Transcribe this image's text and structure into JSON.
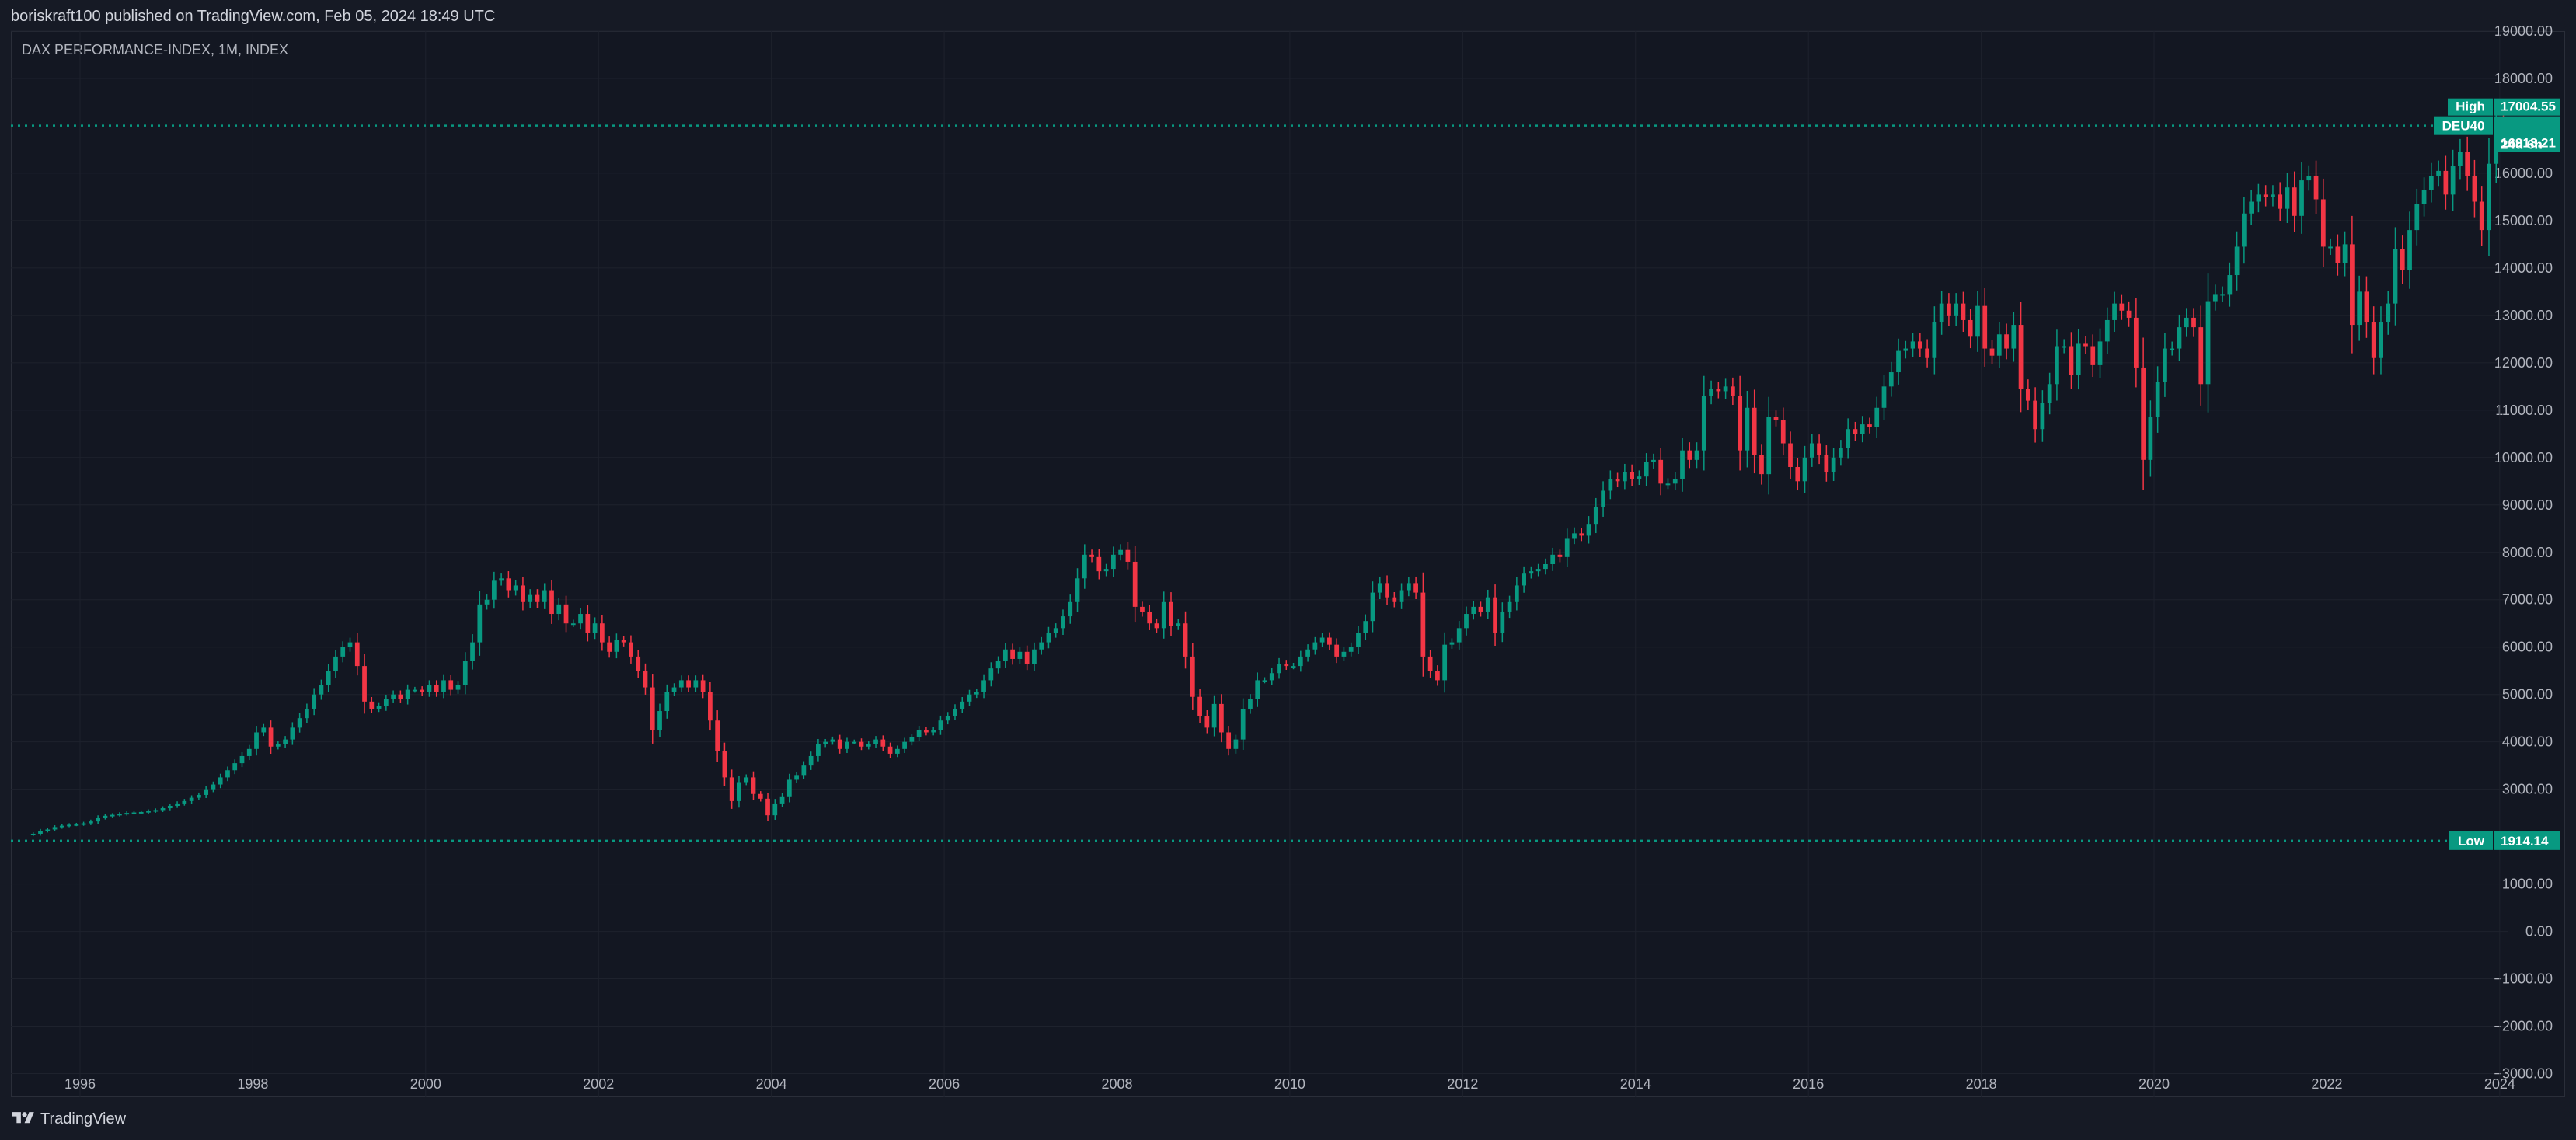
{
  "header": {
    "publish_text": "boriskraft100 published on TradingView.com, Feb 05, 2024 18:49 UTC"
  },
  "footer": {
    "brand": "TradingView"
  },
  "chart_data": {
    "type": "candlestick",
    "title": "DAX PERFORMANCE-INDEX, 1M, INDEX",
    "ylim": [
      -3500,
      19000
    ],
    "xlim": [
      1995.2,
      2024.1
    ],
    "y_ticks": [
      19000,
      18000,
      16000,
      15000,
      14000,
      13000,
      12000,
      11000,
      10000,
      9000,
      8000,
      7000,
      6000,
      5000,
      4000,
      3000,
      1000,
      0,
      -1000,
      -2000,
      -3000
    ],
    "y_tick_labels": [
      "19000.00",
      "18000.00",
      "16000.00",
      "15000.00",
      "14000.00",
      "13000.00",
      "12000.00",
      "11000.00",
      "10000.00",
      "9000.00",
      "8000.00",
      "7000.00",
      "6000.00",
      "5000.00",
      "4000.00",
      "3000.00",
      "1000.00",
      "0.00",
      "−1000.00",
      "−2000.00",
      "−3000.00"
    ],
    "x_ticks": [
      1996,
      1998,
      2000,
      2002,
      2004,
      2006,
      2008,
      2010,
      2012,
      2014,
      2016,
      2018,
      2020,
      2022,
      2024
    ],
    "x_tick_labels": [
      "1996",
      "1998",
      "2000",
      "2002",
      "2004",
      "2006",
      "2008",
      "2010",
      "2012",
      "2014",
      "2016",
      "2018",
      "2020",
      "2022",
      "2024"
    ],
    "high_line": {
      "label": "High",
      "value": 17004.55,
      "value_text": "17004.55"
    },
    "low_line": {
      "label": "Low",
      "value": 1914.14,
      "value_text": "1914.14"
    },
    "last_price": {
      "symbol": "DEU40",
      "value": 16918.21,
      "value_text": "16918.21",
      "countdown": "24d 6h"
    },
    "up_color": "#089981",
    "down_color": "#f23645",
    "line_color": "#089981",
    "close_series": {
      "start": "1995-06",
      "step": "1M",
      "values": [
        2060,
        2120,
        2150,
        2200,
        2230,
        2250,
        2260,
        2280,
        2320,
        2400,
        2440,
        2460,
        2480,
        2500,
        2510,
        2520,
        2540,
        2560,
        2600,
        2650,
        2700,
        2750,
        2820,
        2880,
        3000,
        3100,
        3250,
        3400,
        3550,
        3700,
        3850,
        4200,
        4300,
        3900,
        3950,
        4050,
        4300,
        4500,
        4700,
        5000,
        5200,
        5500,
        5800,
        6000,
        6100,
        5600,
        4850,
        4700,
        4750,
        4900,
        5000,
        4900,
        5100,
        5100,
        5050,
        5200,
        5050,
        5300,
        5100,
        5200,
        5700,
        6100,
        6900,
        7000,
        7400,
        7450,
        7200,
        7300,
        6950,
        7100,
        6950,
        7200,
        6700,
        6900,
        6500,
        6500,
        6700,
        6300,
        6500,
        6100,
        5900,
        6150,
        6100,
        5800,
        5500,
        5150,
        4250,
        4650,
        5050,
        5150,
        5300,
        5150,
        5300,
        5050,
        4450,
        3800,
        3250,
        2750,
        3150,
        3250,
        2900,
        2800,
        2450,
        2700,
        2850,
        3200,
        3300,
        3500,
        3700,
        3950,
        4000,
        4050,
        3850,
        4000,
        4000,
        3900,
        3950,
        4050,
        3900,
        3750,
        3850,
        4000,
        4100,
        4250,
        4200,
        4250,
        4450,
        4550,
        4700,
        4850,
        5000,
        5050,
        5300,
        5550,
        5700,
        5950,
        5750,
        5900,
        5650,
        5950,
        6100,
        6300,
        6400,
        6650,
        6950,
        7450,
        7950,
        7900,
        7600,
        7650,
        7950,
        8050,
        7800,
        6850,
        6750,
        6500,
        6400,
        6950,
        6450,
        6500,
        5800,
        4950,
        4550,
        4300,
        4800,
        4200,
        3850,
        4050,
        4700,
        4900,
        5300,
        5300,
        5450,
        5650,
        5600,
        5600,
        5800,
        5950,
        6100,
        6200,
        6050,
        5800,
        5900,
        6000,
        6300,
        6550,
        7150,
        7350,
        7050,
        6950,
        7200,
        7350,
        7150,
        5800,
        5500,
        5300,
        6050,
        6100,
        6400,
        6700,
        6850,
        6750,
        7050,
        6300,
        6750,
        6950,
        7300,
        7550,
        7600,
        7650,
        7750,
        7950,
        7900,
        8300,
        8400,
        8350,
        8600,
        8950,
        9300,
        9550,
        9500,
        9700,
        9550,
        9600,
        9900,
        9950,
        9450,
        9450,
        9550,
        10150,
        9950,
        10150,
        11300,
        11450,
        11400,
        11500,
        11300,
        10150,
        11050,
        10050,
        9650,
        10850,
        10800,
        10300,
        9800,
        9500,
        10000,
        10300,
        10050,
        9700,
        10000,
        10200,
        10600,
        10500,
        10700,
        10650,
        11050,
        11500,
        11800,
        12250,
        12300,
        12450,
        12300,
        12100,
        12850,
        13250,
        13000,
        13250,
        12900,
        12550,
        13200,
        12300,
        12150,
        12600,
        12300,
        12800,
        11450,
        11200,
        10600,
        11150,
        11550,
        12350,
        12350,
        11750,
        12400,
        12350,
        11950,
        12450,
        12900,
        13250,
        13100,
        12950,
        11900,
        9950,
        10850,
        11600,
        12300,
        12300,
        12750,
        12950,
        12750,
        11550,
        13300,
        13450,
        13450,
        13850,
        14450,
        15150,
        15400,
        15550,
        15500,
        15550,
        15250,
        15700,
        15100,
        15850,
        15950,
        15450,
        14450,
        14450,
        14100,
        14500,
        12800,
        13500,
        12850,
        12100,
        12850,
        13250,
        14400,
        13950,
        14800,
        15350,
        15650,
        15950,
        16050,
        15550,
        16150,
        16450,
        15950,
        15400,
        14800,
        16200,
        17000,
        16920
      ]
    }
  }
}
